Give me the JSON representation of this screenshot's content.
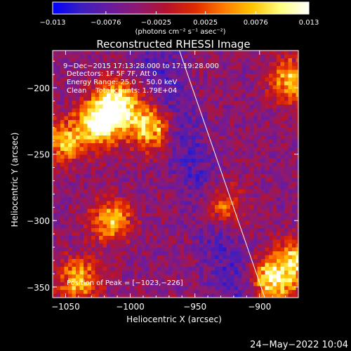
{
  "chart_data": {
    "type": "heatmap",
    "title": "Reconstructed RHESSI Image",
    "xlabel": "Heliocentric X (arcsec)",
    "ylabel": "Heliocentric Y (arcsec)",
    "xlim": [
      -1060,
      -870
    ],
    "ylim": [
      -358,
      -172
    ],
    "xticks": [
      -1050,
      -1000,
      -950,
      -900
    ],
    "yticks": [
      -200,
      -250,
      -300,
      -350
    ],
    "tick_labels_x": [
      "−1050",
      "−1000",
      "−950",
      "−900"
    ],
    "tick_labels_y": [
      "−200",
      "−250",
      "−300",
      "−350"
    ],
    "colorbar": {
      "min": -0.013,
      "max": 0.013,
      "ticks": [
        -0.013,
        -0.0076,
        -0.0025,
        0.0025,
        0.0076,
        0.013
      ],
      "tick_labels": [
        "−0.013",
        "−0.0076",
        "−0.0025",
        "0.0025",
        "0.0076",
        "0.013"
      ],
      "units_label": "(photons cm⁻² s⁻¹ asec⁻²)",
      "colormap": [
        "#0000ff",
        "#3b1fbf",
        "#6a1a9e",
        "#8e1a6f",
        "#b5122e",
        "#e02a00",
        "#ff7a00",
        "#ffc400",
        "#ffff80",
        "#ffffff"
      ]
    },
    "annotations": [
      "9−Dec−2015 17:13:28.000 to 17:19:28.000",
      "Detectors: 1F 5F 7F, Att 0",
      "Energy Range: 25.0 − 50.0 keV",
      "Clean    Total counts: 1.79E+04",
      "Position of Peak = [−1023,−226]"
    ],
    "sources": [
      {
        "x": -1023,
        "y": -226,
        "value": 0.013
      },
      {
        "x": -1010,
        "y": -212,
        "value": 0.011
      },
      {
        "x": -985,
        "y": -230,
        "value": 0.009
      },
      {
        "x": -1015,
        "y": -300,
        "value": 0.006
      },
      {
        "x": -1050,
        "y": -240,
        "value": 0.006
      },
      {
        "x": -890,
        "y": -345,
        "value": 0.01
      },
      {
        "x": -870,
        "y": -330,
        "value": 0.008
      },
      {
        "x": -875,
        "y": -195,
        "value": 0.007
      },
      {
        "x": -1040,
        "y": -345,
        "value": 0.006
      },
      {
        "x": -930,
        "y": -290,
        "value": 0.004
      }
    ],
    "limb_line": [
      {
        "x": -962,
        "y": -172
      },
      {
        "x": -896,
        "y": -358
      }
    ],
    "grid": false
  },
  "footer": {
    "timestamp": "24−May−2022 10:04"
  }
}
